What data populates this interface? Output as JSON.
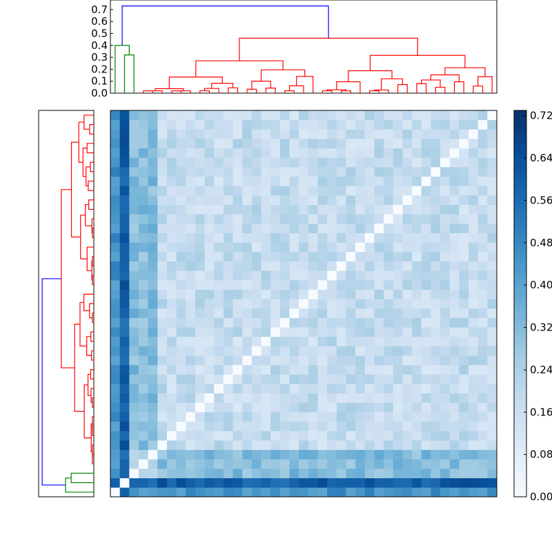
{
  "chart_data": [
    {
      "type": "heatmap",
      "n": 41,
      "colorbar": {
        "ticks": [
          "0.00",
          "0.08",
          "0.16",
          "0.24",
          "0.32",
          "0.40",
          "0.48",
          "0.56",
          "0.64",
          "0.72"
        ],
        "vmin": 0,
        "vmax": 0.73,
        "colormap": "Blues",
        "colors": [
          "#f7fbff",
          "#deebf7",
          "#c6dbef",
          "#9ecae1",
          "#6baed6",
          "#4292c6",
          "#2171b5",
          "#08519c",
          "#08306b"
        ]
      },
      "matrix_description": "pairwise distance matrix reordered by hierarchical clustering; zero diagonal; outlier row/column at index 1 (~0.6), index 0 moderately distant (~0.45), indices 2-4 form a second cluster",
      "row_outliers": {
        "index_1_level": 0.6,
        "index_0_level": 0.45
      },
      "cluster_levels": {
        "within_2_4": 0.2,
        "between_2_4_and_rest": 0.32,
        "within_rest": 0.18
      }
    },
    {
      "type": "dendrogram",
      "orientation": "top",
      "yticks": [
        "0.0",
        "0.1",
        "0.2",
        "0.3",
        "0.4",
        "0.5",
        "0.6",
        "0.7"
      ],
      "ylim": [
        0,
        0.78
      ],
      "root_height": 0.73,
      "branch_colors": {
        "root": "#0000ff",
        "cluster_a": "#008000",
        "cluster_b": "#ff0000"
      },
      "merge_heights_cluster_a": [
        0.32,
        0.4
      ],
      "merge_heights_cluster_b": [
        0.46,
        0.37,
        0.31,
        0.25,
        0.2,
        0.18,
        0.15,
        0.13,
        0.1,
        0.08,
        0.05,
        0.03
      ]
    },
    {
      "type": "dendrogram",
      "orientation": "left",
      "root_height": 0.73,
      "branch_colors": {
        "root": "#0000ff",
        "cluster_a": "#008000",
        "cluster_b": "#ff0000"
      }
    }
  ]
}
